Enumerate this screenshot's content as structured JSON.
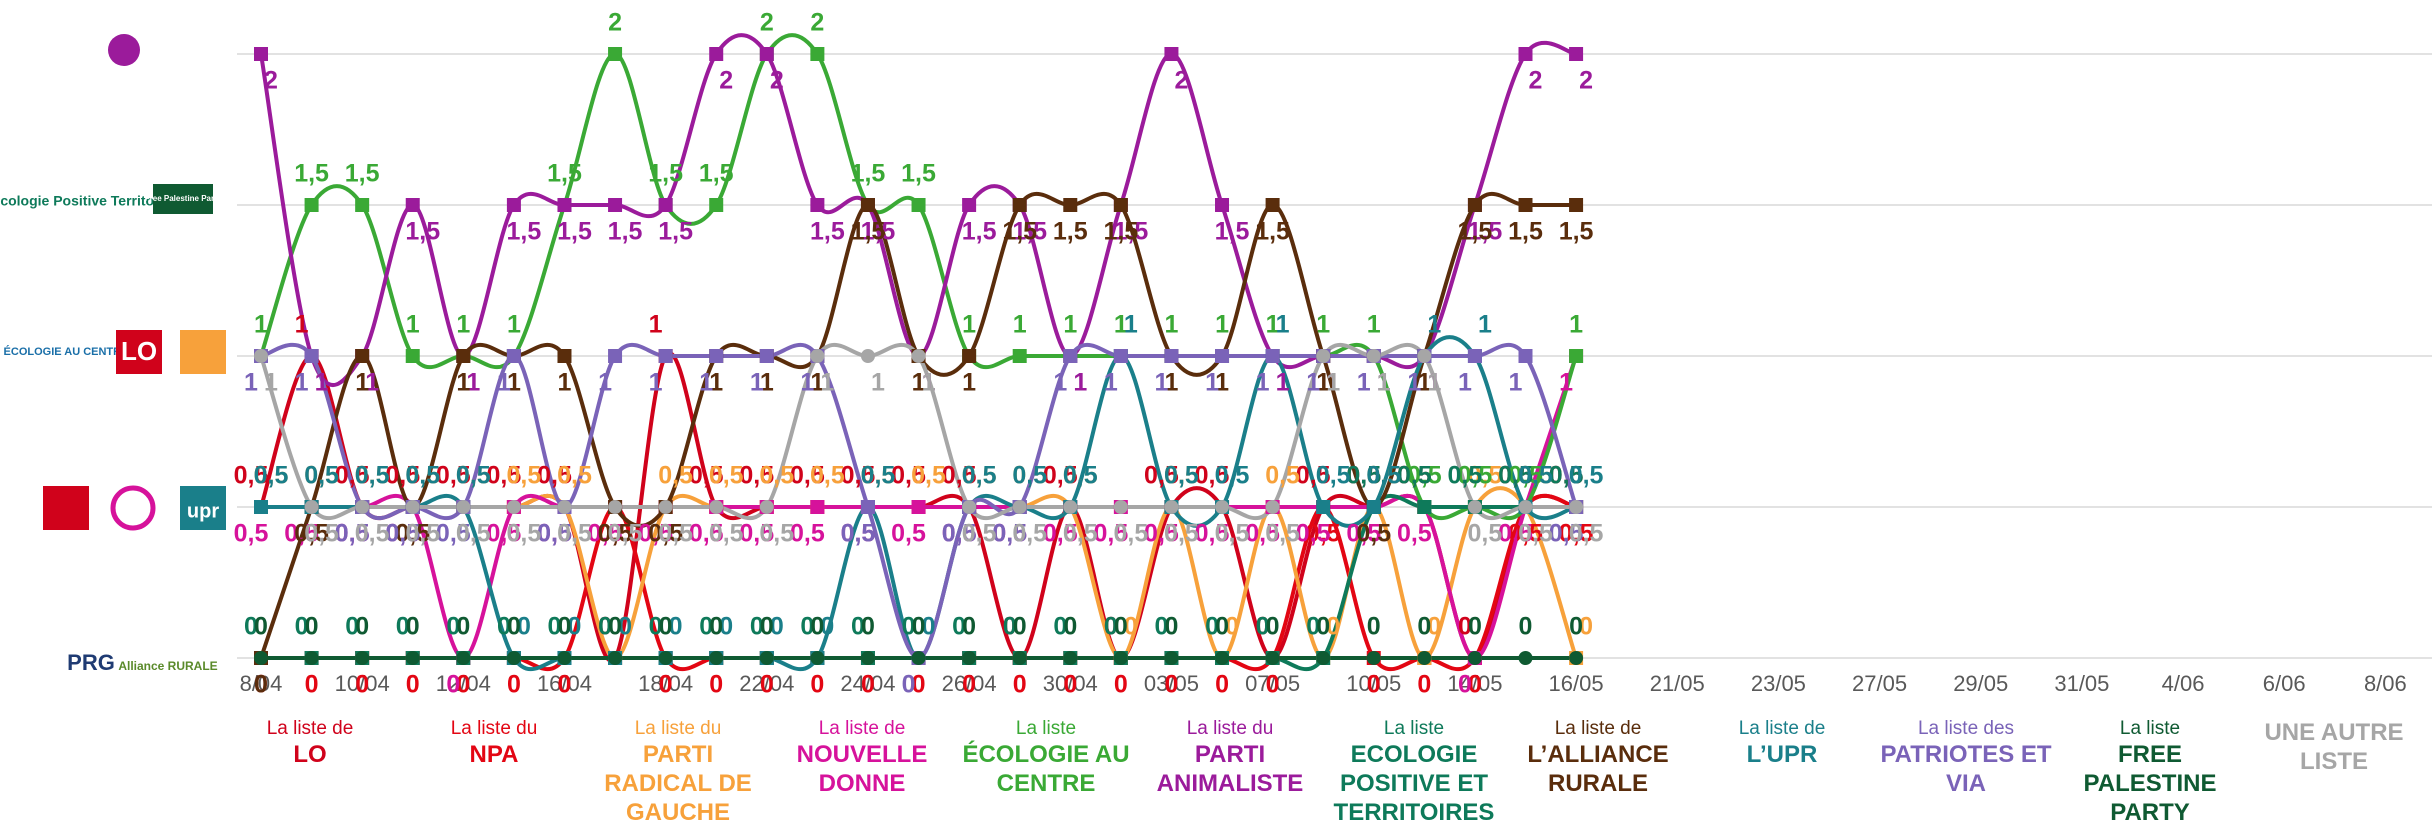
{
  "chart_data": {
    "type": "line",
    "categories": [
      "8/04",
      null,
      "10/04",
      null,
      "12/04",
      null,
      "16/04",
      null,
      "18/04",
      null,
      "22/04",
      null,
      "24/04",
      null,
      "26/04",
      null,
      "30/04",
      null,
      "03/05",
      null,
      "07/05",
      null,
      "10/05",
      null,
      "14/05",
      null,
      "16/05",
      null,
      "21/05",
      null,
      "23/05",
      null,
      "27/05",
      null,
      "29/05",
      null,
      "31/05",
      null,
      "4/06",
      null,
      "6/06",
      null,
      "8/06"
    ],
    "ylim": [
      0,
      2
    ],
    "yticks": [
      0,
      0.5,
      1,
      1.5,
      2
    ],
    "grid": true,
    "series": [
      {
        "prefix": "La liste de",
        "name": "LO",
        "color": "#d0021b",
        "marker": "square",
        "values": [
          0.5,
          1,
          0.5,
          0.5,
          0.5,
          0.5,
          0.5,
          0,
          1,
          0.5,
          0.5,
          0.5,
          0.5,
          0.5,
          0.5,
          0,
          0.5,
          0,
          0.5,
          0.5,
          0,
          0.5,
          0.5,
          0.5,
          0,
          0.5,
          0.5,
          null,
          null,
          null,
          null,
          null,
          null,
          null,
          null,
          null,
          null,
          null,
          null,
          null,
          null,
          null,
          null
        ],
        "value_labels": [
          "0,5",
          "1",
          "0,5",
          "0,5",
          "0,5",
          "0,5",
          "0,5",
          "0",
          "1",
          "0,5",
          "0,5",
          "0,5",
          "0,5",
          "0,5",
          "0,5",
          "0",
          "0,5",
          "0",
          "0,5",
          "0,5",
          "0",
          "0,5",
          "0,5",
          "0,5",
          "0",
          "0,5",
          "0,5",
          null,
          null,
          null,
          null,
          null,
          null,
          null,
          null,
          null,
          null,
          null,
          null,
          null,
          null,
          null,
          null
        ]
      },
      {
        "prefix": "La liste du",
        "name": "NPA",
        "color": "#e30613",
        "marker": "square",
        "values": [
          0,
          0,
          0,
          0,
          0,
          0,
          0,
          0.5,
          0,
          0,
          0,
          0,
          0,
          0,
          0,
          0,
          0,
          0,
          0,
          0,
          0,
          0.5,
          0,
          0,
          0,
          0.5,
          0.5,
          null,
          null,
          null,
          null,
          null,
          null,
          null,
          null,
          null,
          null,
          null,
          null,
          null,
          null,
          null,
          null
        ],
        "value_labels": [
          "0",
          "0",
          "0",
          "0",
          "0",
          "0",
          "0",
          "0,5",
          "0",
          "0",
          "0",
          "0",
          "0",
          "0",
          "0",
          "0",
          "0",
          "0",
          "0",
          "0",
          "0",
          "0,5",
          "0",
          "0",
          "0",
          "0,5",
          "0,5",
          null,
          null,
          null,
          null,
          null,
          null,
          null,
          null,
          null,
          null,
          null,
          null,
          null,
          null,
          null,
          null
        ]
      },
      {
        "prefix": "La liste du",
        "name": "PARTI RADICAL DE GAUCHE",
        "color": "#f7a13b",
        "marker": "square",
        "values": [
          0.5,
          0.5,
          0.5,
          0.5,
          0.5,
          0.5,
          0.5,
          0,
          0.5,
          0.5,
          0.5,
          0.5,
          0.5,
          0.5,
          0.5,
          0.5,
          0.5,
          0,
          0.5,
          0,
          0.5,
          0,
          0.5,
          0,
          0.5,
          0.5,
          0,
          null,
          null,
          null,
          null,
          null,
          null,
          null,
          null,
          null,
          null,
          null,
          null,
          null,
          null,
          null,
          null
        ],
        "value_labels": [
          "0,5",
          "0,5",
          "0,5",
          "0,5",
          "0,5",
          "0,5",
          "0,5",
          "0",
          "0,5",
          "0,5",
          "0,5",
          "0,5",
          "0,5",
          "0,5",
          "0,5",
          "0,5",
          "0,5",
          "0",
          "0,5",
          "0",
          "0,5",
          "0",
          "0,5",
          "0",
          "0,5",
          "0,5",
          "0",
          null,
          null,
          null,
          null,
          null,
          null,
          null,
          null,
          null,
          null,
          null,
          null,
          null,
          null,
          null,
          null
        ]
      },
      {
        "prefix": "La liste de",
        "name": "NOUVELLE DONNE",
        "color": "#d6129b",
        "marker": "square",
        "values": [
          0.5,
          0.5,
          0.5,
          0.5,
          0,
          0.5,
          0.5,
          0.5,
          0.5,
          0.5,
          0.5,
          0.5,
          0.5,
          0.5,
          0.5,
          0.5,
          0.5,
          0.5,
          0.5,
          0.5,
          0.5,
          0.5,
          0.5,
          0.5,
          0,
          0.5,
          1,
          null,
          null,
          null,
          null,
          null,
          null,
          null,
          null,
          null,
          null,
          null,
          null,
          null,
          null,
          null,
          null
        ],
        "value_labels": [
          "0,5",
          "0,5",
          "0,5",
          "0,5",
          "0",
          "0,5",
          "0,5",
          "0,5",
          "0,5",
          "0,5",
          "0,5",
          "0,5",
          "0,5",
          "0,5",
          "0,5",
          "0,5",
          "0,5",
          "0,5",
          "0,5",
          "0,5",
          "0,5",
          "0,5",
          "0,5",
          "0,5",
          "0",
          "0,5",
          "1",
          null,
          null,
          null,
          null,
          null,
          null,
          null,
          null,
          null,
          null,
          null,
          null,
          null,
          null,
          null,
          null
        ]
      },
      {
        "prefix": "La liste",
        "name": "ÉCOLOGIE AU CENTRE",
        "color": "#3aa935",
        "marker": "square",
        "values": [
          1,
          1.5,
          1.5,
          1,
          1,
          1,
          1.5,
          2,
          1.5,
          1.5,
          2,
          2,
          1.5,
          1.5,
          1,
          1,
          1,
          1,
          1,
          1,
          1,
          1,
          1,
          0.5,
          0.5,
          0.5,
          1,
          null,
          null,
          null,
          null,
          null,
          null,
          null,
          null,
          null,
          null,
          null,
          null,
          null,
          null,
          null,
          null
        ],
        "value_labels": [
          "1",
          "1,5",
          "1,5",
          "1",
          "1",
          "1",
          "1,5",
          "2",
          "1,5",
          "1,5",
          "2",
          "2",
          "1,5",
          "1,5",
          "1",
          "1",
          "1",
          "1",
          "1",
          "1",
          "1",
          "1",
          "1",
          "0,5",
          "0,5",
          "0,5",
          "1",
          null,
          null,
          null,
          null,
          null,
          null,
          null,
          null,
          null,
          null,
          null,
          null,
          null,
          null,
          null,
          null
        ]
      },
      {
        "prefix": "La liste du",
        "name": "PARTI ANIMALISTE",
        "color": "#9b1b9b",
        "marker": "square",
        "values": [
          2,
          1,
          1,
          1.5,
          1,
          1.5,
          1.5,
          1.5,
          1.5,
          2,
          2,
          1.5,
          1.5,
          1,
          1.5,
          1.5,
          1,
          1.5,
          2,
          1.5,
          1,
          1,
          1,
          1,
          1.5,
          2,
          2,
          null,
          null,
          null,
          null,
          null,
          null,
          null,
          null,
          null,
          null,
          null,
          null,
          null,
          null,
          null,
          null
        ],
        "value_labels": [
          "2",
          "1",
          "1",
          "1,5",
          "1",
          "1,5",
          "1,5",
          "1,5",
          "1,5",
          "2",
          "2",
          "1,5",
          "1,5",
          "1",
          "1,5",
          "1,5",
          "1",
          "1,5",
          "2",
          "1,5",
          "1",
          "1",
          "1",
          "1",
          "1,5",
          "2",
          "2",
          null,
          null,
          null,
          null,
          null,
          null,
          null,
          null,
          null,
          null,
          null,
          null,
          null,
          null,
          null,
          null
        ]
      },
      {
        "prefix": "La liste",
        "name": "ECOLOGIE POSITIVE ET TERRITOIRES",
        "color": "#0e7a5a",
        "marker": "square",
        "values": [
          0,
          0,
          0,
          0,
          0,
          0,
          0,
          0,
          0,
          0,
          0,
          0,
          0,
          0,
          0,
          0,
          0,
          0,
          0,
          0,
          0,
          0,
          0.5,
          0.5,
          0.5,
          0.5,
          0.5,
          null,
          null,
          null,
          null,
          null,
          null,
          null,
          null,
          null,
          null,
          null,
          null,
          null,
          null,
          null,
          null
        ],
        "value_labels": [
          "0",
          "0",
          "0",
          "0",
          "0",
          "0",
          "0",
          "0",
          "0",
          "0",
          "0",
          "0",
          "0",
          "0",
          "0",
          "0",
          "0",
          "0",
          "0",
          "0",
          "0",
          "0",
          "0,5",
          "0,5",
          "0,5",
          "0,5",
          "0,5",
          null,
          null,
          null,
          null,
          null,
          null,
          null,
          null,
          null,
          null,
          null,
          null,
          null,
          null,
          null,
          null
        ]
      },
      {
        "prefix": "La liste de",
        "name": "L’ALLIANCE RURALE",
        "color": "#5a2d0c",
        "marker": "square",
        "values": [
          0,
          0.5,
          1,
          0.5,
          1,
          1,
          1,
          0.5,
          0.5,
          1,
          1,
          1,
          1.5,
          1,
          1,
          1.5,
          1.5,
          1.5,
          1,
          1,
          1.5,
          1,
          0.5,
          1,
          1.5,
          1.5,
          1.5,
          null,
          null,
          null,
          null,
          null,
          null,
          null,
          null,
          null,
          null,
          null,
          null,
          null,
          null,
          null,
          null
        ],
        "value_labels": [
          "0",
          "0,5",
          "1",
          "0,5",
          "1",
          "1",
          "1",
          "0,5",
          "0,5",
          "1",
          "1",
          "1",
          "1,5",
          "1",
          "1",
          "1,5",
          "1,5",
          "1,5",
          "1",
          "1",
          "1,5",
          "1",
          "0,5",
          "1",
          "1,5",
          "1,5",
          "1,5",
          null,
          null,
          null,
          null,
          null,
          null,
          null,
          null,
          null,
          null,
          null,
          null,
          null,
          null,
          null,
          null
        ]
      },
      {
        "prefix": "La liste de",
        "name": "L’UPR",
        "color": "#1a7f8a",
        "marker": "square",
        "values": [
          0.5,
          0.5,
          0.5,
          0.5,
          0.5,
          0,
          0,
          0,
          0,
          0,
          0,
          0,
          0.5,
          0,
          0.5,
          0.5,
          0.5,
          1,
          0.5,
          0.5,
          1,
          0.5,
          0.5,
          1,
          1,
          0.5,
          0.5,
          null,
          null,
          null,
          null,
          null,
          null,
          null,
          null,
          null,
          null,
          null,
          null,
          null,
          null,
          null,
          null
        ],
        "value_labels": [
          "0,5",
          "0,5",
          "0,5",
          "0,5",
          "0,5",
          "0",
          "0",
          "0",
          "0",
          "0",
          "0",
          "0",
          "0,5",
          "0",
          "0,5",
          "0,5",
          "0,5",
          "1",
          "0,5",
          "0,5",
          "1",
          "0,5",
          "0,5",
          "1",
          "1",
          "0,5",
          "0,5",
          null,
          null,
          null,
          null,
          null,
          null,
          null,
          null,
          null,
          null,
          null,
          null,
          null,
          null,
          null,
          null
        ]
      },
      {
        "prefix": "La liste des",
        "name": "PATRIOTES ET VIA",
        "color": "#7a63b8",
        "marker": "square",
        "values": [
          1,
          1,
          0.5,
          0.5,
          0.5,
          1,
          0.5,
          1,
          1,
          1,
          1,
          1,
          0.5,
          0,
          0.5,
          0.5,
          1,
          1,
          1,
          1,
          1,
          1,
          1,
          1,
          1,
          1,
          0.5,
          null,
          null,
          null,
          null,
          null,
          null,
          null,
          null,
          null,
          null,
          null,
          null,
          null,
          null,
          null,
          null
        ],
        "value_labels": [
          "1",
          "1",
          "0,5",
          "0,5",
          "0,5",
          "1",
          "0,5",
          "1",
          "1",
          "1",
          "1",
          "1",
          "0,5",
          "0",
          "0,5",
          "0,5",
          "1",
          "1",
          "1",
          "1",
          "1",
          "1",
          "1",
          "1",
          "1",
          "1",
          "0,5",
          null,
          null,
          null,
          null,
          null,
          null,
          null,
          null,
          null,
          null,
          null,
          null,
          null,
          null,
          null,
          null
        ]
      },
      {
        "prefix": "La liste",
        "name": "FREE PALESTINE PARTY",
        "color": "#0f5a32",
        "marker": "circle",
        "values": [
          0,
          0,
          0,
          0,
          0,
          0,
          0,
          0,
          0,
          0,
          0,
          0,
          0,
          0,
          0,
          0,
          0,
          0,
          0,
          0,
          0,
          0,
          0,
          0,
          0,
          0,
          0,
          null,
          null,
          null,
          null,
          null,
          null,
          null,
          null,
          null,
          null,
          null,
          null,
          null,
          null,
          null,
          null
        ],
        "value_labels": [
          "0",
          "0",
          "0",
          "0",
          "0",
          "0",
          "0",
          "0",
          "0",
          "0",
          "0",
          "0",
          "0",
          "0",
          "0",
          "0",
          "0",
          "0",
          "0",
          "0",
          "0",
          "0",
          "0",
          "0",
          "0",
          "0",
          "0",
          null,
          null,
          null,
          null,
          null,
          null,
          null,
          null,
          null,
          null,
          null,
          null,
          null,
          null,
          null,
          null
        ]
      },
      {
        "name": "UNE AUTRE LISTE",
        "color": "#a6a6a6",
        "marker": "circle",
        "values": [
          1,
          0.5,
          0.5,
          0.5,
          0.5,
          0.5,
          0.5,
          0.5,
          0.5,
          0.5,
          0.5,
          1,
          1,
          1,
          0.5,
          0.5,
          0.5,
          0.5,
          0.5,
          0.5,
          0.5,
          1,
          1,
          1,
          0.5,
          0.5,
          0.5,
          null,
          null,
          null,
          null,
          null,
          null,
          null,
          null,
          null,
          null,
          null,
          null,
          null,
          null,
          null,
          null
        ],
        "value_labels": [
          "1",
          "0,5",
          "0,5",
          "0,5",
          "0,5",
          "0,5",
          "0,5",
          "0,5",
          "0,5",
          "0,5",
          "0,5",
          "1",
          "1",
          "1",
          "0,5",
          "0,5",
          "0,5",
          "0,5",
          "0,5",
          "0,5",
          "0,5",
          "1",
          "1",
          "1",
          "0,5",
          "0,5",
          "0,5",
          null,
          null,
          null,
          null,
          null,
          null,
          null,
          null,
          null,
          null,
          null,
          null,
          null,
          null,
          null,
          null
        ]
      }
    ]
  },
  "logos": [
    "Écologie Positive Territoires",
    "Free Palestine Party",
    "ÉCOLOGIE AU CENTRE",
    "LO",
    "upr",
    "PRG",
    "Alliance RURALE"
  ]
}
